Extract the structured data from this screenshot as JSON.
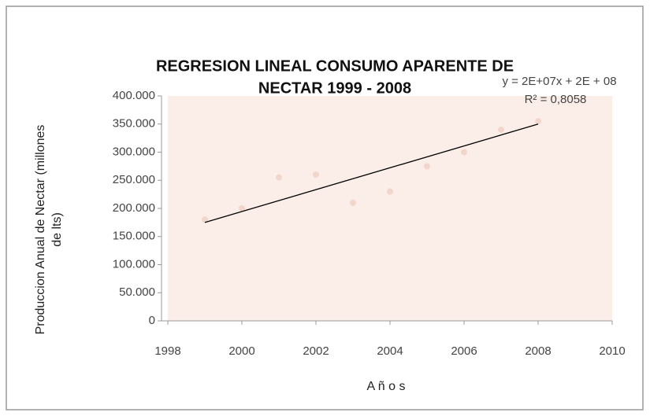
{
  "chart_data": {
    "type": "scatter",
    "title": [
      "REGRESION  LINEAL CONSUMO APARENTE DE",
      "NECTAR 1999 - 2008"
    ],
    "x_label": "A ñ o s",
    "y_label": [
      "Produccion Anual  de Nectar (millones",
      "de lts)"
    ],
    "series": [
      {
        "name": "Produccion",
        "color": "#f2d6cc",
        "x": [
          1999,
          2000,
          2001,
          2002,
          2003,
          2004,
          2005,
          2006,
          2007,
          2008
        ],
        "values": [
          180000,
          200000,
          255000,
          260000,
          210000,
          230000,
          275000,
          300000,
          340000,
          355000
        ]
      }
    ],
    "trendline": {
      "color": "#000000",
      "x": [
        1999,
        2008
      ],
      "values": [
        175000,
        350000
      ]
    },
    "annotations": [
      "y =  2E+07x  + 2E + 08",
      "R² = 0,8058"
    ],
    "xlim": [
      1998,
      2010
    ],
    "xticks": [
      1998,
      2000,
      2002,
      2004,
      2006,
      2008,
      2010
    ],
    "ylim": [
      0,
      400000
    ],
    "yticks": [
      0,
      {
        "value": 50000,
        "label": "50.000"
      },
      {
        "value": 100000,
        "label": "100.000"
      },
      {
        "value": 150000,
        "label": "150.000"
      },
      {
        "value": 200000,
        "label": "200.000"
      },
      {
        "value": 250000,
        "label": "250.000"
      },
      {
        "value": 300000,
        "label": "300.000"
      },
      {
        "value": 350000,
        "label": "350.000"
      },
      {
        "value": 400000,
        "label": "400.000"
      }
    ],
    "plot_background": "#fbeee8"
  }
}
